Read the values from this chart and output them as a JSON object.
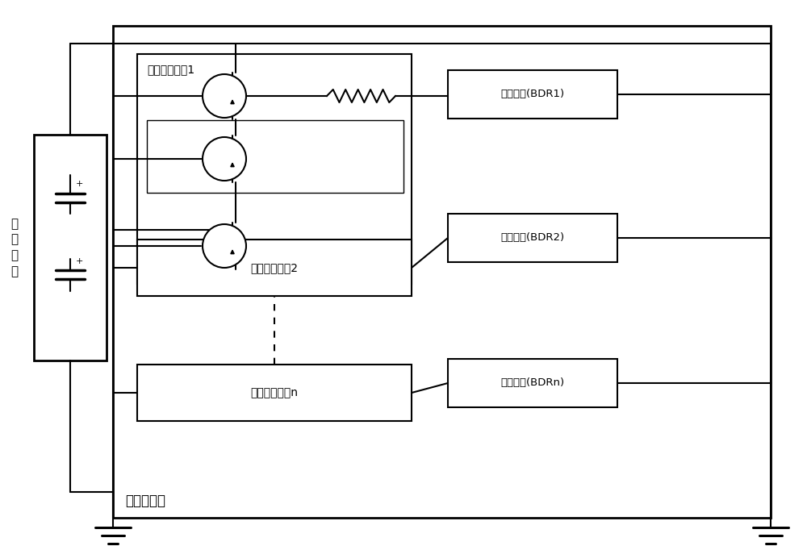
{
  "bg_color": "#ffffff",
  "lc": "#000000",
  "title_text": "电源控制器",
  "battery_label": "蓄\n电\n池\n组",
  "sw1_label": "放电开关电路1",
  "sw2_label": "放电开关电路2",
  "swn_label": "放电开关电路n",
  "bdr1_label": "放电电路(BDR1)",
  "bdr2_label": "放电电路(BDR2)",
  "bdrn_label": "放电电路(BDRn)",
  "fs_label": 10,
  "fs_title": 12,
  "fs_battery": 11,
  "transistor_r": 0.27
}
